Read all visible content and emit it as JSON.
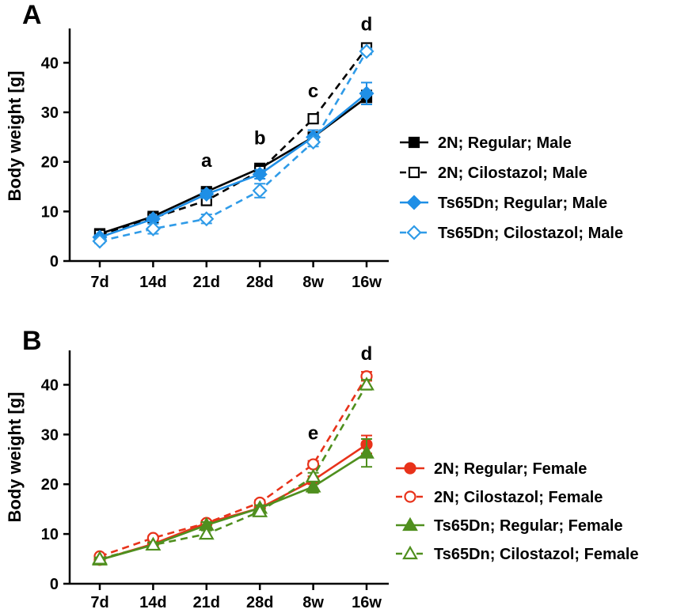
{
  "chart_data": [
    {
      "type": "line",
      "panel_label": "A",
      "ylabel": "Body weight [g]",
      "xlabel": "",
      "ylim": [
        0,
        45
      ],
      "yticks": [
        0,
        10,
        20,
        30,
        40
      ],
      "categories": [
        "7d",
        "14d",
        "21d",
        "28d",
        "8w",
        "16w"
      ],
      "annotations": [
        {
          "text": "a",
          "category": "21d",
          "y": 19
        },
        {
          "text": "b",
          "category": "28d",
          "y": 23.5
        },
        {
          "text": "c",
          "category": "8w",
          "y": 33
        },
        {
          "text": "d",
          "category": "16w",
          "y": 46.5
        }
      ],
      "series": [
        {
          "name": "2N; Regular; Male",
          "values": [
            5.5,
            9,
            14,
            18.7,
            25,
            33
          ],
          "errors": [
            0.4,
            0.5,
            0.6,
            0.5,
            0.9,
            1.4
          ],
          "color": "#000000",
          "dashed": false,
          "marker": "square",
          "filled": true
        },
        {
          "name": "2N; Cilostazol; Male",
          "values": [
            5.3,
            8.7,
            12.2,
            18.2,
            28.7,
            43
          ],
          "errors": [
            0.4,
            0.5,
            0.8,
            0.6,
            0.7,
            0.6
          ],
          "color": "#000000",
          "dashed": true,
          "marker": "square",
          "filled": false
        },
        {
          "name": "Ts65Dn; Regular; Male",
          "values": [
            4.8,
            8.5,
            13.5,
            17.5,
            25,
            33.8
          ],
          "errors": [
            0.4,
            0.5,
            0.8,
            0.9,
            1.4,
            2.2
          ],
          "color": "#1f8fe6",
          "dashed": false,
          "marker": "diamond",
          "filled": true
        },
        {
          "name": "Ts65Dn; Cilostazol; Male",
          "values": [
            4,
            6.5,
            8.5,
            14.2,
            24,
            42.3
          ],
          "errors": [
            0.4,
            1.0,
            0.9,
            1.4,
            0.9,
            0.6
          ],
          "color": "#2f9be8",
          "dashed": true,
          "marker": "diamond",
          "filled": false
        }
      ]
    },
    {
      "type": "line",
      "panel_label": "B",
      "ylabel": "Body weight [g]",
      "xlabel": "",
      "ylim": [
        0,
        45
      ],
      "yticks": [
        0,
        10,
        20,
        30,
        40
      ],
      "categories": [
        "7d",
        "14d",
        "21d",
        "28d",
        "8w",
        "16w"
      ],
      "annotations": [
        {
          "text": "e",
          "category": "8w",
          "y": 29
        },
        {
          "text": "d",
          "category": "16w",
          "y": 45
        }
      ],
      "series": [
        {
          "name": "2N; Regular; Female",
          "values": [
            4.8,
            8,
            12.2,
            15.2,
            20.8,
            28
          ],
          "errors": [
            0.3,
            0.4,
            0.4,
            0.5,
            0.8,
            1.8
          ],
          "color": "#e8321a",
          "dashed": false,
          "marker": "circle",
          "filled": true
        },
        {
          "name": "2N; Cilostazol; Female",
          "values": [
            5.5,
            9.2,
            12.2,
            16.3,
            24,
            41.7
          ],
          "errors": [
            0.3,
            0.4,
            0.5,
            0.5,
            0.7,
            0.9
          ],
          "color": "#e8321a",
          "dashed": true,
          "marker": "circle",
          "filled": false
        },
        {
          "name": "Ts65Dn; Regular; Female",
          "values": [
            4.8,
            7.8,
            11.8,
            15.2,
            19.5,
            26.3
          ],
          "errors": [
            0.3,
            0.5,
            0.6,
            0.6,
            1.2,
            2.8
          ],
          "color": "#4f8f1e",
          "dashed": false,
          "marker": "triangle",
          "filled": true
        },
        {
          "name": "Ts65Dn; Cilostazol; Female",
          "values": [
            5,
            7.8,
            10,
            14.5,
            21.5,
            40
          ],
          "errors": [
            0.3,
            0.5,
            0.7,
            0.6,
            0.8,
            1.0
          ],
          "color": "#4f8f1e",
          "dashed": true,
          "marker": "triangle",
          "filled": false
        }
      ]
    }
  ]
}
